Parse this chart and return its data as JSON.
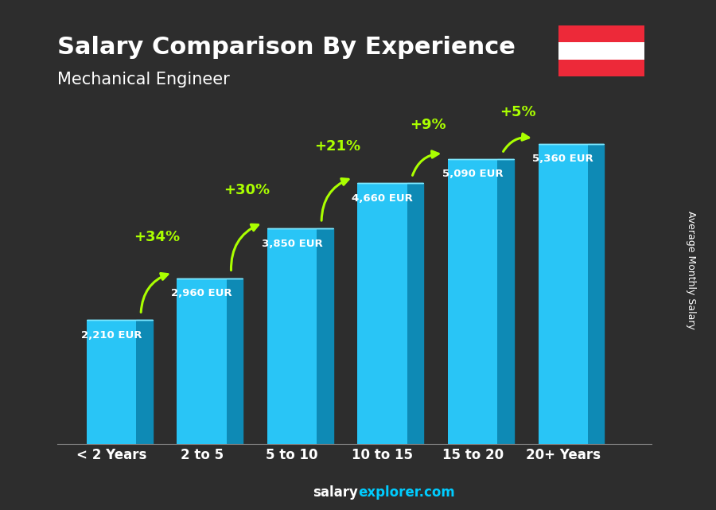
{
  "title": "Salary Comparison By Experience",
  "subtitle": "Mechanical Engineer",
  "categories": [
    "< 2 Years",
    "2 to 5",
    "5 to 10",
    "10 to 15",
    "15 to 20",
    "20+ Years"
  ],
  "values": [
    2210,
    2960,
    3850,
    4660,
    5090,
    5360
  ],
  "value_labels": [
    "2,210 EUR",
    "2,960 EUR",
    "3,850 EUR",
    "4,660 EUR",
    "5,090 EUR",
    "5,360 EUR"
  ],
  "pct_changes": [
    "+34%",
    "+30%",
    "+21%",
    "+9%",
    "+5%"
  ],
  "ylabel": "Average Monthly Salary",
  "bar_color_top": "#00d4ff",
  "bar_color_bottom": "#0088cc",
  "bar_color_side": "#006699",
  "background_color": "#1a1a2e",
  "title_color": "#ffffff",
  "subtitle_color": "#ffffff",
  "label_color": "#ffffff",
  "pct_color": "#aaff00",
  "website": "salaryexplorer.com",
  "ylim": [
    0,
    6200
  ]
}
